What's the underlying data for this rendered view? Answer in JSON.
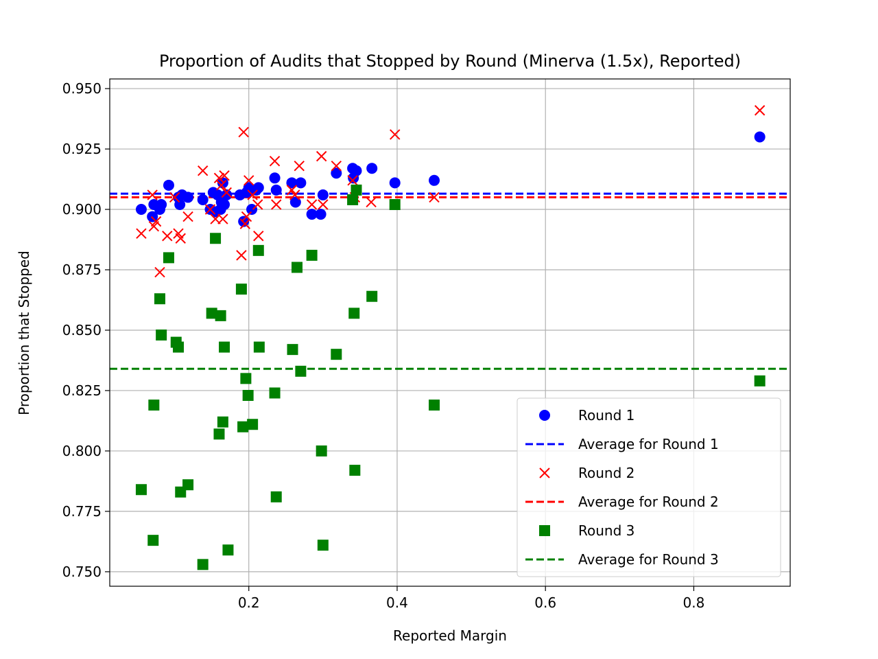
{
  "chart_data": {
    "type": "scatter",
    "title": "Proportion of Audits that Stopped by Round (Minerva (1.5x), Reported)",
    "xlabel": "Reported Margin",
    "ylabel": "Proportion that Stopped",
    "xlim": [
      0.0125,
      0.93
    ],
    "ylim": [
      0.744,
      0.954
    ],
    "xticks": [
      0.2,
      0.4,
      0.6,
      0.8
    ],
    "xtick_labels": [
      "0.2",
      "0.4",
      "0.6",
      "0.8"
    ],
    "yticks": [
      0.75,
      0.775,
      0.8,
      0.825,
      0.85,
      0.875,
      0.9,
      0.925,
      0.95
    ],
    "ytick_labels": [
      "0.750",
      "0.775",
      "0.800",
      "0.825",
      "0.850",
      "0.875",
      "0.900",
      "0.925",
      "0.950"
    ],
    "grid": true,
    "legend_position": "lower-right",
    "series": [
      {
        "name": "Round 1",
        "marker": "circle",
        "color": "#0000ff",
        "x": [
          0.055,
          0.07,
          0.072,
          0.08,
          0.082,
          0.092,
          0.105,
          0.107,
          0.11,
          0.118,
          0.138,
          0.148,
          0.152,
          0.155,
          0.158,
          0.162,
          0.163,
          0.165,
          0.167,
          0.17,
          0.188,
          0.193,
          0.197,
          0.2,
          0.204,
          0.21,
          0.213,
          0.235,
          0.237,
          0.258,
          0.263,
          0.27,
          0.285,
          0.297,
          0.3,
          0.318,
          0.34,
          0.341,
          0.345,
          0.366,
          0.397,
          0.45,
          0.889
        ],
        "values": [
          0.9,
          0.897,
          0.902,
          0.9,
          0.902,
          0.91,
          0.905,
          0.902,
          0.906,
          0.905,
          0.904,
          0.9,
          0.907,
          0.899,
          0.906,
          0.9,
          0.903,
          0.911,
          0.902,
          0.906,
          0.906,
          0.895,
          0.907,
          0.909,
          0.9,
          0.908,
          0.909,
          0.913,
          0.908,
          0.911,
          0.903,
          0.911,
          0.898,
          0.898,
          0.906,
          0.915,
          0.917,
          0.913,
          0.916,
          0.917,
          0.911,
          0.912,
          0.93
        ]
      },
      {
        "name": "Average for Round 1",
        "type": "hline",
        "color": "#0000ff",
        "value": 0.9065
      },
      {
        "name": "Round 2",
        "marker": "x",
        "color": "#ff0000",
        "x": [
          0.055,
          0.07,
          0.072,
          0.075,
          0.08,
          0.09,
          0.1,
          0.105,
          0.108,
          0.118,
          0.138,
          0.148,
          0.155,
          0.16,
          0.163,
          0.165,
          0.167,
          0.17,
          0.19,
          0.193,
          0.195,
          0.197,
          0.2,
          0.205,
          0.212,
          0.213,
          0.235,
          0.237,
          0.258,
          0.262,
          0.268,
          0.285,
          0.298,
          0.3,
          0.318,
          0.34,
          0.343,
          0.365,
          0.397,
          0.45,
          0.889
        ],
        "values": [
          0.89,
          0.906,
          0.893,
          0.895,
          0.874,
          0.889,
          0.905,
          0.89,
          0.888,
          0.897,
          0.916,
          0.9,
          0.896,
          0.913,
          0.91,
          0.896,
          0.914,
          0.907,
          0.881,
          0.932,
          0.894,
          0.897,
          0.912,
          0.906,
          0.902,
          0.889,
          0.92,
          0.902,
          0.908,
          0.906,
          0.918,
          0.902,
          0.922,
          0.902,
          0.918,
          0.912,
          0.905,
          0.903,
          0.931,
          0.905,
          0.941
        ]
      },
      {
        "name": "Average for Round 2",
        "type": "hline",
        "color": "#ff0000",
        "value": 0.905
      },
      {
        "name": "Round 3",
        "marker": "square",
        "color": "#008000",
        "x": [
          0.055,
          0.071,
          0.072,
          0.08,
          0.082,
          0.092,
          0.102,
          0.105,
          0.108,
          0.118,
          0.138,
          0.15,
          0.155,
          0.16,
          0.162,
          0.165,
          0.167,
          0.172,
          0.19,
          0.192,
          0.196,
          0.199,
          0.205,
          0.213,
          0.214,
          0.235,
          0.237,
          0.259,
          0.265,
          0.27,
          0.285,
          0.298,
          0.3,
          0.318,
          0.34,
          0.342,
          0.343,
          0.345,
          0.366,
          0.397,
          0.45,
          0.889
        ],
        "values": [
          0.784,
          0.763,
          0.819,
          0.863,
          0.848,
          0.88,
          0.845,
          0.843,
          0.783,
          0.786,
          0.753,
          0.857,
          0.888,
          0.807,
          0.856,
          0.812,
          0.843,
          0.759,
          0.867,
          0.81,
          0.83,
          0.823,
          0.811,
          0.883,
          0.843,
          0.824,
          0.781,
          0.842,
          0.876,
          0.833,
          0.881,
          0.8,
          0.761,
          0.84,
          0.904,
          0.857,
          0.792,
          0.908,
          0.864,
          0.902,
          0.819,
          0.829
        ]
      },
      {
        "name": "Average for Round 3",
        "type": "hline",
        "color": "#008000",
        "value": 0.834
      }
    ]
  }
}
